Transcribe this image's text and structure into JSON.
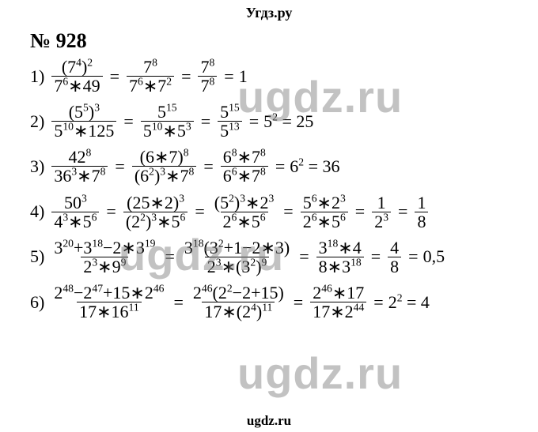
{
  "header": "Угдз.ру",
  "title": "№ 928",
  "watermark": "ugdz.ru",
  "footer": "ugdz.ru",
  "colors": {
    "text": "#000000",
    "background": "#ffffff",
    "watermark": "rgba(120,120,120,0.45)"
  },
  "typography": {
    "header_fontsize": 18,
    "title_fontsize": 26,
    "body_fontsize": 22,
    "watermark_fontsize": 56,
    "font_family": "Times New Roman"
  },
  "items": [
    {
      "index": "1)",
      "steps": [
        {
          "num": "(7<sup>4</sup>)<sup>2</sup>",
          "den": "7<sup>6</sup>∗49"
        },
        {
          "num": "7<sup>8</sup>",
          "den": "7<sup>6</sup>∗7<sup>2</sup>"
        },
        {
          "num": "7<sup>8</sup>",
          "den": "7<sup>8</sup>"
        }
      ],
      "result": "1"
    },
    {
      "index": "2)",
      "steps": [
        {
          "num": "(5<sup>5</sup>)<sup>3</sup>",
          "den": "5<sup>10</sup>∗125"
        },
        {
          "num": "5<sup>15</sup>",
          "den": "5<sup>10</sup>∗5<sup>3</sup>"
        },
        {
          "num": "5<sup>15</sup>",
          "den": "5<sup>13</sup>"
        }
      ],
      "result": "5<sup>2</sup> = 25"
    },
    {
      "index": "3)",
      "steps": [
        {
          "num": "42<sup>8</sup>",
          "den": "36<sup>3</sup>∗7<sup>8</sup>"
        },
        {
          "num": "(6∗7)<sup>8</sup>",
          "den": "(6<sup>2</sup>)<sup>3</sup>∗7<sup>8</sup>"
        },
        {
          "num": "6<sup>8</sup>∗7<sup>8</sup>",
          "den": "6<sup>6</sup>∗7<sup>8</sup>"
        }
      ],
      "result": "6<sup>2</sup> = 36"
    },
    {
      "index": "4)",
      "steps": [
        {
          "num": "50<sup>3</sup>",
          "den": "4<sup>3</sup>∗5<sup>6</sup>"
        },
        {
          "num": "(25∗2)<sup>3</sup>",
          "den": "(2<sup>2</sup>)<sup>3</sup>∗5<sup>6</sup>"
        },
        {
          "num": "(5<sup>2</sup>)<sup>3</sup>∗2<sup>3</sup>",
          "den": "2<sup>6</sup>∗5<sup>6</sup>"
        },
        {
          "num": "5<sup>6</sup>∗2<sup>3</sup>",
          "den": "2<sup>6</sup>∗5<sup>6</sup>"
        },
        {
          "num": "1",
          "den": "2<sup>3</sup>"
        },
        {
          "num": "1",
          "den": "8"
        }
      ],
      "result": ""
    },
    {
      "index": "5)",
      "steps": [
        {
          "num": "3<sup>20</sup>+3<sup>18</sup>−2∗3<sup>19</sup>",
          "den": "2<sup>3</sup>∗9<sup>9</sup>"
        },
        {
          "num": "3<sup>18</sup>(3<sup>2</sup>+1−2∗3)",
          "den": "2<sup>3</sup>∗(3<sup>2</sup>)<sup>9</sup>"
        },
        {
          "num": "3<sup>18</sup>∗4",
          "den": "8∗3<sup>18</sup>"
        },
        {
          "num": "4",
          "den": "8"
        }
      ],
      "result": "0,5"
    },
    {
      "index": "6)",
      "steps": [
        {
          "num": "2<sup>48</sup>−2<sup>47</sup>+15∗2<sup>46</sup>",
          "den": "17∗16<sup>11</sup>"
        },
        {
          "num": "2<sup>46</sup>(2<sup>2</sup>−2+15)",
          "den": "17∗(2<sup>4</sup>)<sup>11</sup>"
        },
        {
          "num": "2<sup>46</sup>∗17",
          "den": "17∗2<sup>44</sup>"
        }
      ],
      "result": "2<sup>2</sup> = 4"
    }
  ]
}
